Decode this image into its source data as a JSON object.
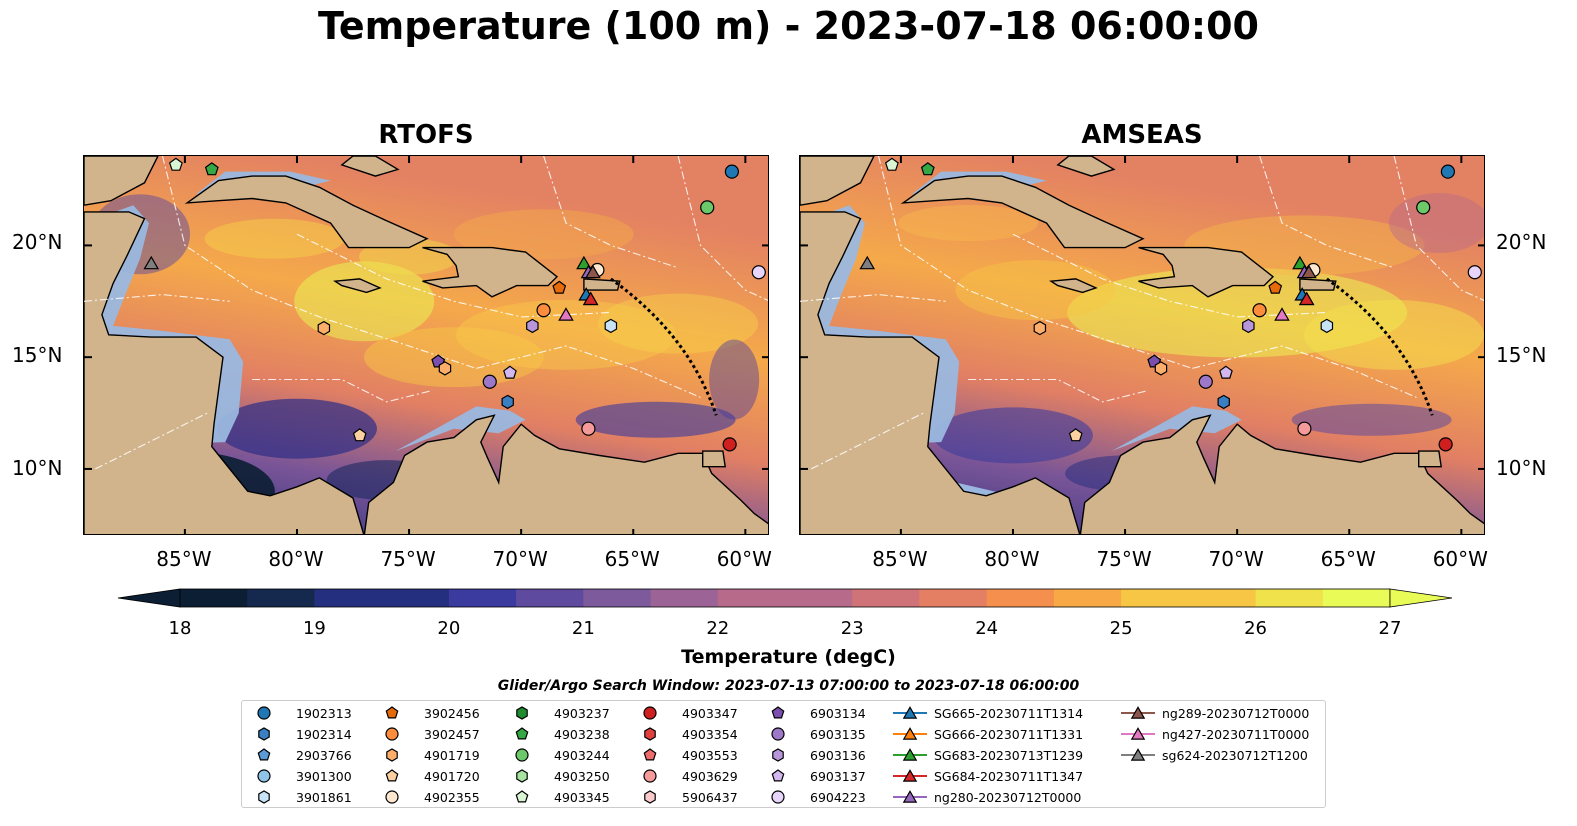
{
  "title": "Temperature (100 m) - 2023-07-18 06:00:00",
  "panels": [
    {
      "title": "RTOFS"
    },
    {
      "title": "AMSEAS"
    }
  ],
  "axes": {
    "lon_ticks": [
      "85°W",
      "80°W",
      "75°W",
      "70°W",
      "65°W",
      "60°W"
    ],
    "lat_ticks": [
      "20°N",
      "15°N",
      "10°N"
    ]
  },
  "colorbar": {
    "title": "Temperature (degC)",
    "ticks": [
      "18",
      "19",
      "20",
      "21",
      "22",
      "23",
      "24",
      "25",
      "26",
      "27"
    ],
    "range": [
      18,
      27
    ],
    "extend": "both"
  },
  "search_window": "Glider/Argo Search Window: 2023-07-13 07:00:00 to 2023-07-18 06:00:00",
  "colors": {
    "land": "#d2b48c",
    "shallow_water": "#9ab8df",
    "cmap": [
      "#0b1e33",
      "#15294f",
      "#252f80",
      "#3b3a9e",
      "#5e4a9e",
      "#7d5a9c",
      "#9c6397",
      "#b86a8a",
      "#cf7378",
      "#e57f63",
      "#f48f4e",
      "#f8a845",
      "#f7c644",
      "#f0e24a",
      "#e8fb57"
    ]
  },
  "legend": {
    "items": [
      {
        "label": "1902313",
        "shape": "circle",
        "color": "#1f77b4"
      },
      {
        "label": "1902314",
        "shape": "hexagon",
        "color": "#3a7fc2"
      },
      {
        "label": "2903766",
        "shape": "pentagon",
        "color": "#5a9ad6"
      },
      {
        "label": "3901300",
        "shape": "circle",
        "color": "#8fc3e8"
      },
      {
        "label": "3901861",
        "shape": "hexagon",
        "color": "#c7e3f5"
      },
      {
        "label": "3902456",
        "shape": "pentagon",
        "color": "#e66a0a"
      },
      {
        "label": "3902457",
        "shape": "circle",
        "color": "#fd8d3c"
      },
      {
        "label": "4901719",
        "shape": "hexagon",
        "color": "#fdae6b"
      },
      {
        "label": "4901720",
        "shape": "pentagon",
        "color": "#fdd0a2"
      },
      {
        "label": "4902355",
        "shape": "circle",
        "color": "#fde8cf"
      },
      {
        "label": "4903237",
        "shape": "hexagon",
        "color": "#1e8c2e"
      },
      {
        "label": "4903238",
        "shape": "pentagon",
        "color": "#35a845"
      },
      {
        "label": "4903244",
        "shape": "circle",
        "color": "#6cc96a"
      },
      {
        "label": "4903250",
        "shape": "hexagon",
        "color": "#a6e3a0"
      },
      {
        "label": "4903345",
        "shape": "pentagon",
        "color": "#d9f5d3"
      },
      {
        "label": "4903347",
        "shape": "circle",
        "color": "#cf1f1f"
      },
      {
        "label": "4903354",
        "shape": "hexagon",
        "color": "#e0413f"
      },
      {
        "label": "4903553",
        "shape": "pentagon",
        "color": "#ee6b6b"
      },
      {
        "label": "4903629",
        "shape": "circle",
        "color": "#f59a9a"
      },
      {
        "label": "5906437",
        "shape": "hexagon",
        "color": "#fbcaca"
      },
      {
        "label": "6903134",
        "shape": "pentagon",
        "color": "#7b4fad"
      },
      {
        "label": "6903135",
        "shape": "circle",
        "color": "#9e78c8"
      },
      {
        "label": "6903136",
        "shape": "hexagon",
        "color": "#b896dc"
      },
      {
        "label": "6903137",
        "shape": "pentagon",
        "color": "#d2b8ef"
      },
      {
        "label": "6904223",
        "shape": "circle",
        "color": "#e8d5fb"
      },
      {
        "label": "SG665-20230711T1314",
        "shape": "triangle",
        "color": "#1f77b4"
      },
      {
        "label": "SG666-20230711T1331",
        "shape": "triangle",
        "color": "#ff7f0e"
      },
      {
        "label": "SG683-20230713T1239",
        "shape": "triangle",
        "color": "#2ca02c"
      },
      {
        "label": "SG684-20230711T1347",
        "shape": "triangle",
        "color": "#d62728"
      },
      {
        "label": "ng280-20230712T0000",
        "shape": "triangle",
        "color": "#9467bd"
      },
      {
        "label": "ng289-20230712T0000",
        "shape": "triangle",
        "color": "#8c564b"
      },
      {
        "label": "ng427-20230711T0000",
        "shape": "triangle",
        "color": "#e377c2"
      },
      {
        "label": "sg624-20230712T1200",
        "shape": "triangle",
        "color": "#7f7f7f"
      }
    ]
  },
  "markers": [
    {
      "label": "1902313",
      "lon": -60.6,
      "lat": 23.3
    },
    {
      "label": "4903244",
      "lon": -61.7,
      "lat": 21.7
    },
    {
      "label": "6904223",
      "lon": -59.4,
      "lat": 18.8
    },
    {
      "label": "4903347",
      "lon": -60.7,
      "lat": 11.1
    },
    {
      "label": "4903629",
      "lon": -67.0,
      "lat": 11.8
    },
    {
      "label": "4901720",
      "lon": -77.2,
      "lat": 11.5
    },
    {
      "label": "1902314",
      "lon": -70.6,
      "lat": 13.0
    },
    {
      "label": "6903135",
      "lon": -71.4,
      "lat": 13.9
    },
    {
      "label": "6903137",
      "lon": -70.5,
      "lat": 14.3
    },
    {
      "label": "6903134",
      "lon": -73.7,
      "lat": 14.8
    },
    {
      "label": "4901719",
      "lon": -73.4,
      "lat": 14.5
    },
    {
      "label": "4901719",
      "lon": -78.8,
      "lat": 16.3
    },
    {
      "label": "3902457",
      "lon": -69.0,
      "lat": 17.1
    },
    {
      "label": "6903136",
      "lon": -69.5,
      "lat": 16.4
    },
    {
      "label": "3901861",
      "lon": -66.0,
      "lat": 16.4
    },
    {
      "label": "3902456",
      "lon": -68.3,
      "lat": 18.1
    },
    {
      "label": "4902355",
      "lon": -66.6,
      "lat": 18.9
    },
    {
      "label": "4903238",
      "lon": -83.8,
      "lat": 23.4
    },
    {
      "label": "4903345",
      "lon": -85.4,
      "lat": 23.6
    },
    {
      "label": "SG665-20230711T1314",
      "lon": -67.1,
      "lat": 17.8
    },
    {
      "label": "SG666-20230711T1331",
      "lon": -66.9,
      "lat": 17.6
    },
    {
      "label": "SG683-20230713T1239",
      "lon": -67.2,
      "lat": 19.2
    },
    {
      "label": "SG684-20230711T1347",
      "lon": -66.9,
      "lat": 17.6
    },
    {
      "label": "ng280-20230712T0000",
      "lon": -67.0,
      "lat": 18.8
    },
    {
      "label": "ng289-20230712T0000",
      "lon": -66.8,
      "lat": 18.8
    },
    {
      "label": "ng427-20230711T0000",
      "lon": -68.0,
      "lat": 16.9
    },
    {
      "label": "sg624-20230712T1200",
      "lon": -86.5,
      "lat": 19.2
    }
  ],
  "extent": {
    "lon": [
      -89.5,
      -58.9
    ],
    "lat": [
      7.0,
      24.0
    ]
  }
}
